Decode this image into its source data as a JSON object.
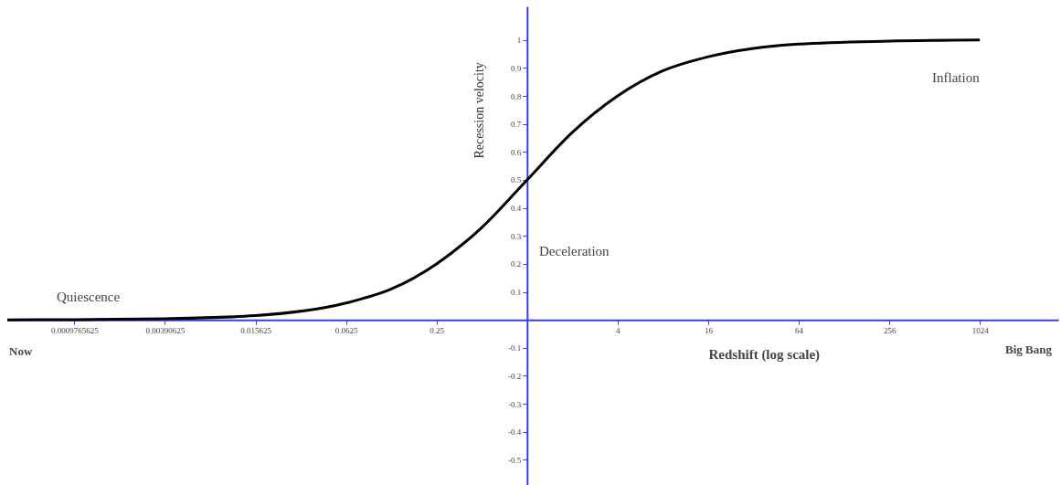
{
  "chart_data": {
    "type": "line",
    "xlabel": "Redshift (log scale)",
    "ylabel": "Recession velocity",
    "x": [
      0.00035,
      0.001,
      0.0039,
      0.0156,
      0.0625,
      0.125,
      0.25,
      0.5,
      1,
      2,
      4,
      8,
      16,
      32,
      64,
      256,
      1024
    ],
    "series": [
      {
        "color": "#000000",
        "values": [
          0,
          0.001,
          0.004,
          0.015,
          0.06,
          0.11,
          0.2,
          0.33,
          0.5,
          0.67,
          0.8,
          0.89,
          0.94,
          0.97,
          0.985,
          0.996,
          1
        ]
      }
    ],
    "log": "x",
    "grid": false,
    "marker": "none",
    "line_style": "solid",
    "xlim": [
      0.00035,
      3400
    ],
    "ylim": [
      -0.59,
      1.12
    ],
    "xticks": [
      0.0009765625,
      0.00390625,
      0.015625,
      0.0625,
      0.25,
      {
        "value": 1,
        "label": null
      },
      4,
      16,
      64,
      256,
      1024
    ],
    "yticks": [
      -0.5,
      -0.4,
      -0.3,
      -0.2,
      -0.1,
      {
        "value": 0,
        "label": null
      },
      0.1,
      0.2,
      0.3,
      0.4,
      0.5,
      0.6,
      0.7,
      0.8,
      0.9,
      1
    ],
    "annotations": [
      "Quiescence",
      "Deceleration",
      "Inflation",
      "Now",
      "Big Bang"
    ]
  }
}
